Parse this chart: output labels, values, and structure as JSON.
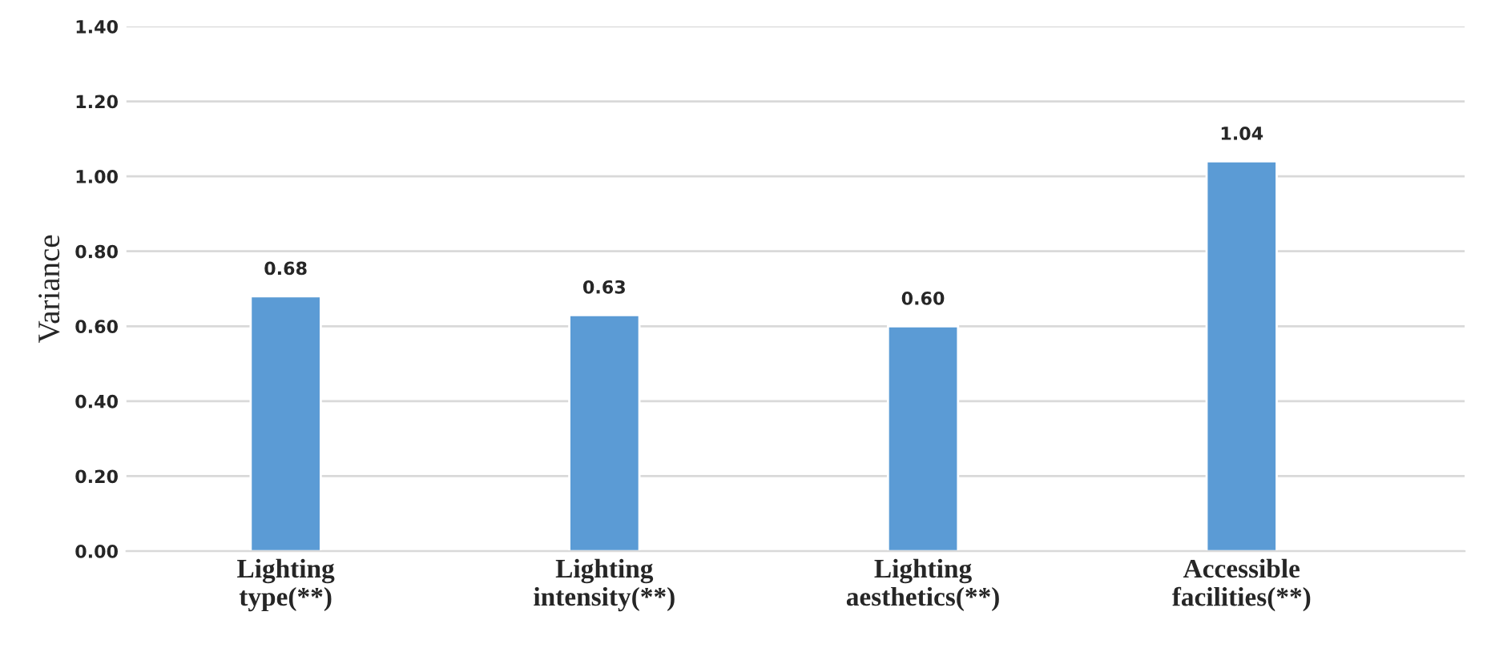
{
  "chart_data": {
    "type": "bar",
    "ylabel": "Variance",
    "categories": [
      "Lighting\ntype(**)",
      "Lighting\nintensity(**)",
      "Lighting\naesthetics(**)",
      "Accessible\nfacilities(**)"
    ],
    "values": [
      0.68,
      0.63,
      0.6,
      1.04
    ],
    "value_labels": [
      "0.68",
      "0.63",
      "0.60",
      "1.04"
    ],
    "color": "#5b9bd5",
    "ylim": [
      0,
      1.4
    ],
    "yticks": [
      {
        "value": 0,
        "label": "0.00"
      },
      {
        "value": 0.2,
        "label": "0.20"
      },
      {
        "value": 0.4,
        "label": "0.40"
      },
      {
        "value": 0.6,
        "label": "0.60"
      },
      {
        "value": 0.8,
        "label": "0.80"
      },
      {
        "value": 1.0,
        "label": "1.00"
      },
      {
        "value": 1.2,
        "label": "1.20"
      },
      {
        "value": 1.4,
        "label": "1.40"
      }
    ],
    "grid": "y"
  }
}
